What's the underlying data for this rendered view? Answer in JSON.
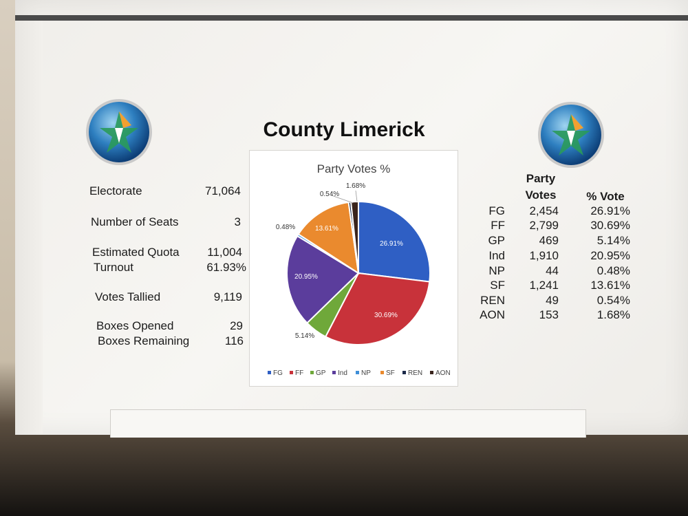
{
  "title": "County Limerick",
  "stats": [
    {
      "label": "Electorate",
      "value": "71,064"
    },
    {
      "label": "Number of Seats",
      "value": "3"
    },
    {
      "label": "Estimated Quota",
      "value": "11,004"
    },
    {
      "label": "Turnout",
      "value": "61.93%"
    },
    {
      "label": "Votes Tallied",
      "value": "9,119"
    },
    {
      "label": "Boxes Opened",
      "value": "29"
    },
    {
      "label": "Boxes Remaining",
      "value": "116"
    }
  ],
  "table": {
    "header_votes_line1": "Party",
    "header_votes_line2": "Votes",
    "header_pct": "% Vote",
    "rows": [
      {
        "party": "FG",
        "votes": "2,454",
        "pct": "26.91%"
      },
      {
        "party": "FF",
        "votes": "2,799",
        "pct": "30.69%"
      },
      {
        "party": "GP",
        "votes": "469",
        "pct": "5.14%"
      },
      {
        "party": "Ind",
        "votes": "1,910",
        "pct": "20.95%"
      },
      {
        "party": "NP",
        "votes": "44",
        "pct": "0.48%"
      },
      {
        "party": "SF",
        "votes": "1,241",
        "pct": "13.61%"
      },
      {
        "party": "REN",
        "votes": "49",
        "pct": "0.54%"
      },
      {
        "party": "AON",
        "votes": "153",
        "pct": "1.68%"
      }
    ]
  },
  "chart_data": {
    "type": "pie",
    "title": "Party Votes %",
    "categories": [
      "FG",
      "FF",
      "GP",
      "Ind",
      "NP",
      "SF",
      "REN",
      "AON"
    ],
    "values": [
      26.91,
      30.69,
      5.14,
      20.95,
      0.48,
      13.61,
      0.54,
      1.68
    ],
    "labels": [
      "26.91%",
      "30.69%",
      "5.14%",
      "20.95%",
      "0.48%",
      "13.61%",
      "0.54%",
      "1.68%"
    ],
    "colors": [
      "#2f5fc4",
      "#c8323a",
      "#6fa83a",
      "#5b3d9c",
      "#3f8fd8",
      "#ea8a2e",
      "#1c2a4a",
      "#3a241c"
    ],
    "legend": "bottom"
  }
}
